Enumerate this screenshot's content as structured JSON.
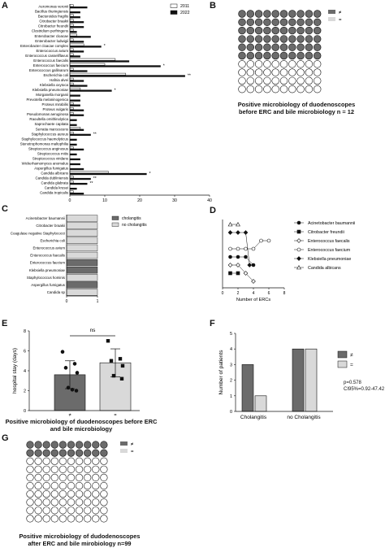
{
  "panels": {
    "A": "A",
    "B": "B",
    "C": "C",
    "D": "D",
    "E": "E",
    "F": "F",
    "G": "G"
  },
  "colors": {
    "dark": "#6b6b6b",
    "light": "#d9d9d9",
    "black": "#111111",
    "white": "#ffffff"
  },
  "chart_data": [
    {
      "type": "bar",
      "panel": "A",
      "orientation": "horizontal",
      "categories": [
        "Aeromonas veronii",
        "Bacillus thuringiensis",
        "Bacteroides fragilis",
        "Citrobacter braakii",
        "Citrobacter freundii",
        "Clostridium perfringens",
        "Enterobacter cloacae",
        "Enterobacter ludwigii",
        "Enterobacter cloacae complex",
        "Enterococcus avium",
        "Enterococcus casseliflavus",
        "Enterococcus faecalis",
        "Enterococcus faecium",
        "Enterococcus gallinarum",
        "Escherichia coli",
        "Hafnia alvei",
        "Klebsiella oxytoca",
        "Klebsiella pneumoniae",
        "Morganella morganii",
        "Prevotella melaninogenica",
        "Proteus mirabilis",
        "Proteus vulgaris",
        "Pseudomonas aeruginosa",
        "Raoultella ornithinolytica",
        "Saprochaete capitata",
        "Serratia marcescens",
        "Staphylococcus aureus",
        "Staphylococcus haemolyticus",
        "Stenotrophomonas maltophilia",
        "Streptococcus anginosus",
        "Streptococcus mitis",
        "Streptococcus viridans",
        "Wickerhamomyces anomalus",
        "Aspergillus fumigatus",
        "Candida albicans",
        "Candida dubliniensis",
        "Candida glabrata",
        "Candida krusei",
        "Candida tropicalis"
      ],
      "series": [
        {
          "name": "2011",
          "values": [
            1,
            0,
            1,
            1,
            1,
            1,
            2,
            1,
            4,
            1,
            1,
            13,
            10,
            1,
            16,
            1,
            1,
            3,
            0,
            0,
            1,
            1,
            1,
            0,
            0,
            3,
            1,
            0,
            0,
            1,
            0,
            0,
            0,
            0,
            11,
            1,
            1,
            0,
            1
          ]
        },
        {
          "name": "2022",
          "values": [
            5,
            3,
            3,
            4,
            4,
            2,
            6,
            4,
            9,
            4,
            3,
            17,
            26,
            5,
            33,
            4,
            5,
            12,
            3,
            3,
            3,
            4,
            4,
            2,
            2,
            4,
            6,
            2,
            2,
            4,
            2,
            3,
            3,
            4,
            22,
            6,
            5,
            2,
            4
          ]
        }
      ],
      "annotations": [
        {
          "category": "Enterobacter cloacae complex",
          "text": "*"
        },
        {
          "category": "Enterococcus faecium",
          "text": "*"
        },
        {
          "category": "Escherichia coli",
          "text": "**"
        },
        {
          "category": "Klebsiella pneumoniae",
          "text": "*"
        },
        {
          "category": "Staphylococcus aureus",
          "text": "**"
        },
        {
          "category": "Candida albicans",
          "text": "*"
        },
        {
          "category": "Candida dubliniensis",
          "text": "**"
        },
        {
          "category": "Candida glabrata",
          "text": "**"
        }
      ],
      "xlim": [
        0,
        40
      ],
      "xticks": [
        "0",
        "10",
        "20",
        "30",
        "40"
      ],
      "legend_position": "top-right",
      "grid": false
    },
    {
      "type": "waffle",
      "panel": "B",
      "total": 100,
      "counts": [
        {
          "name": "≠",
          "value": 60
        },
        {
          "name": "=",
          "value": 40
        }
      ],
      "legend": [
        "≠",
        "="
      ],
      "caption": [
        "Positive microbiology of duodenoscopes",
        "before ERC and bile microbiology n = 12"
      ]
    },
    {
      "type": "bar",
      "panel": "C",
      "orientation": "horizontal",
      "categories": [
        "Acinetobacter baumannii",
        "Citrobacter braakii",
        "Coagulase negative Staphylococci",
        "Escherichia coli",
        "Enterococcus avium",
        "Enterococcus faecalis",
        "Enterococcus faecium",
        "Klebsiella pneumoniae",
        "Staphylococcus hominis",
        "Aspergillus fumigatus",
        "Candida sp"
      ],
      "series_name_by_category": [
        "no cholangitis",
        "no cholangitis",
        "no cholangitis",
        "no cholangitis",
        "no cholangitis",
        "no cholangitis",
        "cholangitis",
        "cholangitis",
        "no cholangitis",
        "cholangitis",
        "no cholangitis"
      ],
      "values": [
        1,
        1,
        1,
        1,
        1,
        1,
        1,
        1,
        1,
        1,
        1
      ],
      "legend": [
        "cholangitis",
        "no cholangitis"
      ],
      "xlim": [
        0,
        1
      ],
      "xticks": [
        "0",
        "1"
      ],
      "legend_position": "top-right"
    },
    {
      "type": "line",
      "panel": "D",
      "xlabel": "Number of ERCs",
      "xlim": [
        0,
        8
      ],
      "xticks": [
        "0",
        "2",
        "4",
        "6",
        "8"
      ],
      "series": [
        {
          "name": "Acinetobacter baumannii",
          "marker": "circle-filled",
          "points": [
            [
              1,
              3
            ],
            [
              2,
              3
            ],
            [
              3,
              3
            ],
            [
              4,
              2
            ]
          ]
        },
        {
          "name": "Citrobacter freundii",
          "marker": "square-filled",
          "points": [
            [
              1,
              1
            ],
            [
              2,
              1
            ]
          ]
        },
        {
          "name": "Enterococcus faecalis",
          "marker": "diamond-open",
          "points": [
            [
              1,
              2
            ],
            [
              2,
              2
            ],
            [
              3,
              1
            ],
            [
              4,
              0
            ]
          ]
        },
        {
          "name": "Enterococcus faecium",
          "marker": "circle-open",
          "points": [
            [
              1,
              4
            ],
            [
              2,
              4
            ],
            [
              3,
              4
            ],
            [
              4,
              4
            ],
            [
              5,
              5
            ],
            [
              6,
              5
            ]
          ]
        },
        {
          "name": "Klebsiella pneumoniae",
          "marker": "diamond-filled",
          "points": [
            [
              1,
              6
            ],
            [
              2,
              6
            ],
            [
              3,
              6
            ],
            [
              3.5,
              2
            ]
          ]
        },
        {
          "name": "Candida albicans",
          "marker": "triangle-open",
          "points": [
            [
              1,
              7
            ],
            [
              2,
              7
            ]
          ]
        }
      ]
    },
    {
      "type": "bar",
      "panel": "E",
      "ylabel": "hospital stay (days)",
      "categories": [
        "≠",
        "="
      ],
      "values": [
        3.6,
        4.8
      ],
      "errors": [
        1.4,
        1.4
      ],
      "points": [
        [
          5.9,
          4.7,
          4.3,
          3.8,
          2.3,
          2.0,
          2.1
        ],
        [
          7.0,
          5.2,
          5.0,
          4.5,
          3.5,
          3.2
        ]
      ],
      "ylim": [
        0,
        8
      ],
      "yticks": [
        "0",
        "2",
        "4",
        "6",
        "8"
      ],
      "significance": "ns",
      "caption": [
        "Positive microbiology of duodenoscopes before ERC",
        "and bile microbiology"
      ]
    },
    {
      "type": "bar",
      "panel": "F",
      "ylabel": "Number of patients",
      "categories": [
        "Cholangitis",
        "no Cholangitis"
      ],
      "series": [
        {
          "name": "≠",
          "values": [
            3,
            4
          ]
        },
        {
          "name": "=",
          "values": [
            1,
            4
          ]
        }
      ],
      "ylim": [
        0,
        5
      ],
      "yticks": [
        "0",
        "1",
        "2",
        "3",
        "4",
        "5"
      ],
      "stats": [
        "p=0.578",
        "CI95%=0.92-47.42"
      ],
      "legend_position": "top-right"
    },
    {
      "type": "waffle",
      "panel": "G",
      "total": 100,
      "counts": [
        {
          "name": "≠",
          "value": 20
        },
        {
          "name": "=",
          "value": 80
        }
      ],
      "legend": [
        "≠",
        "="
      ],
      "caption": [
        "Positive microbiology of dudodenoscopes",
        "after ERC and bile mirobiology n=99"
      ]
    }
  ]
}
